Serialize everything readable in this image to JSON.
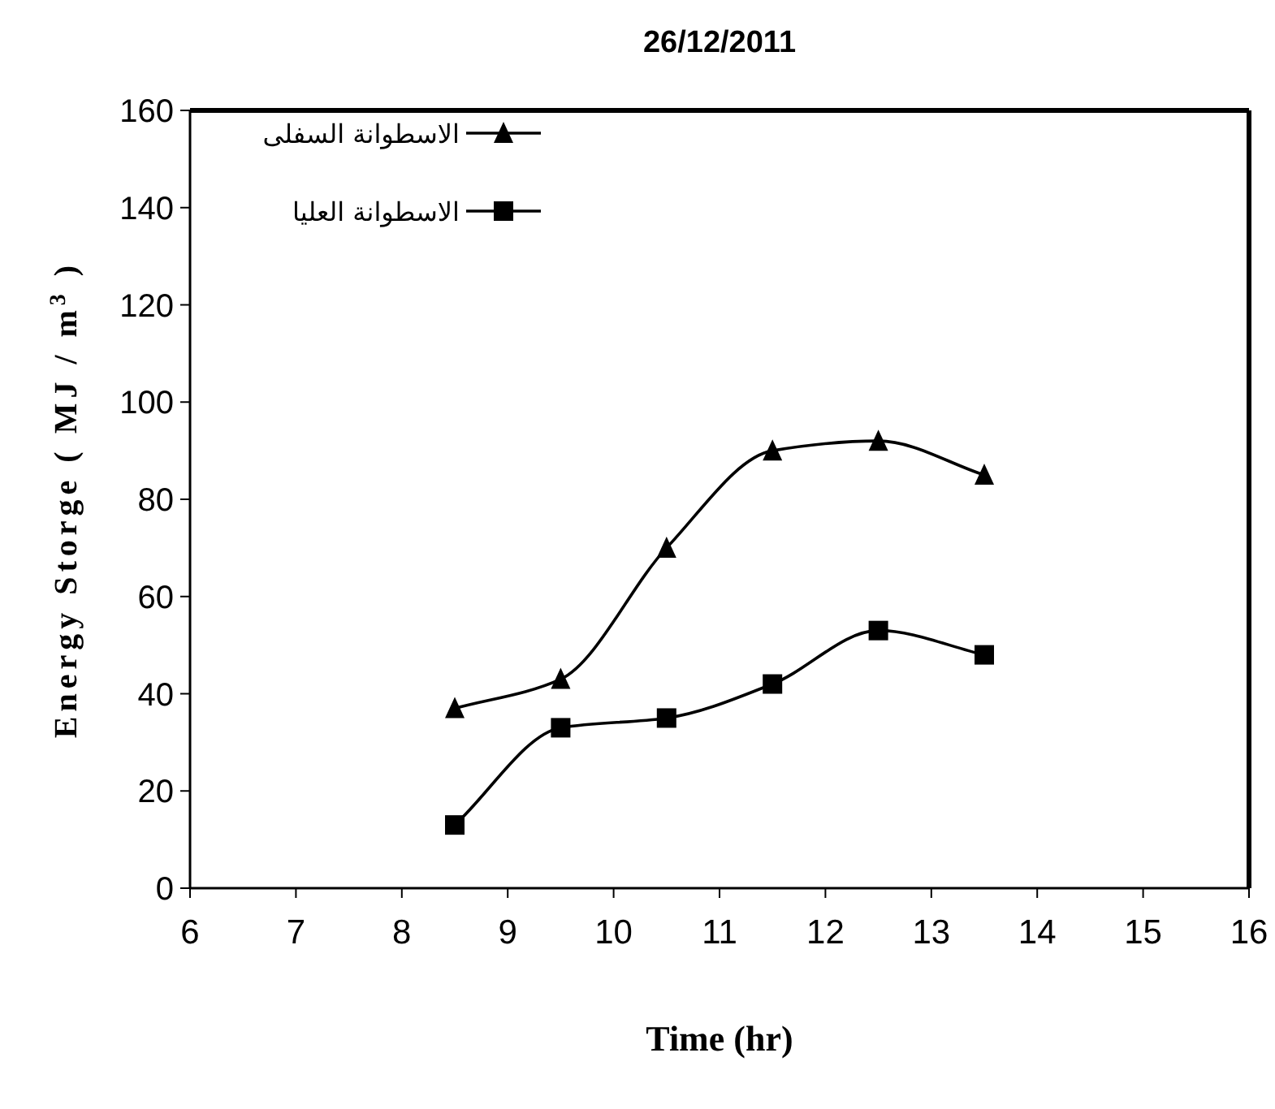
{
  "chart_data": {
    "type": "line",
    "title": "26/12/2011",
    "xlabel": "Time (hr)",
    "ylabel": "Energy Storge ( MJ / m$^{3}$ )",
    "xlim": [
      6,
      16
    ],
    "xticks": [
      6,
      7,
      8,
      9,
      10,
      11,
      12,
      13,
      14,
      15,
      16
    ],
    "ylim": [
      0,
      160
    ],
    "yticks": [
      0,
      20,
      40,
      60,
      80,
      100,
      120,
      140,
      160
    ],
    "grid": false,
    "legend": "top left",
    "series": [
      {
        "name": "الاسطوانة السفلى",
        "color": "#000000",
        "marker": "triangle",
        "x": [
          8.5,
          9.5,
          10.5,
          11.5,
          12.5,
          13.5
        ],
        "values": [
          37,
          43,
          70,
          90,
          92,
          85
        ]
      },
      {
        "name": "الاسطوانة العليا",
        "color": "#000000",
        "marker": "square",
        "x": [
          8.5,
          9.5,
          10.5,
          11.5,
          12.5,
          13.5
        ],
        "values": [
          13,
          33,
          35,
          42,
          53,
          48
        ]
      }
    ]
  }
}
